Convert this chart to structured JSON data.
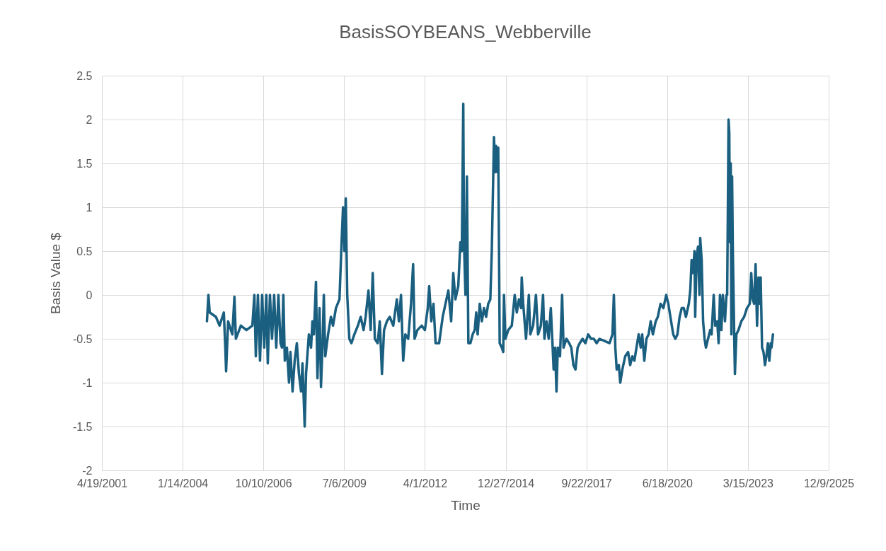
{
  "chart_data": {
    "type": "line",
    "title": "BasisSOYBEANS_Webberville",
    "xlabel": "Time",
    "ylabel": "Basis Value $",
    "xlim": [
      "2001-04-19",
      "2025-12-09"
    ],
    "xticks": [
      {
        "value": "2001-04-19",
        "label": "4/19/2001"
      },
      {
        "value": "2004-01-14",
        "label": "1/14/2004"
      },
      {
        "value": "2006-10-10",
        "label": "10/10/2006"
      },
      {
        "value": "2009-07-06",
        "label": "7/6/2009"
      },
      {
        "value": "2012-04-01",
        "label": "4/1/2012"
      },
      {
        "value": "2014-12-27",
        "label": "12/27/2014"
      },
      {
        "value": "2017-09-22",
        "label": "9/22/2017"
      },
      {
        "value": "2020-06-18",
        "label": "6/18/2020"
      },
      {
        "value": "2023-03-15",
        "label": "3/15/2023"
      },
      {
        "value": "2025-12-09",
        "label": "12/9/2025"
      }
    ],
    "ylim": [
      -2,
      2.5
    ],
    "yticks": [
      -2,
      -1.5,
      -1,
      -0.5,
      0,
      0.5,
      1,
      1.5,
      2,
      2.5
    ],
    "grid": true,
    "marker": "none",
    "line_style": "solid",
    "x": [
      "2004-11-10",
      "2004-11-28",
      "2004-12-14",
      "2005-03-01",
      "2005-04-15",
      "2005-06-07",
      "2005-06-25",
      "2005-07-05",
      "2005-07-30",
      "2005-09-20",
      "2005-10-16",
      "2005-11-03",
      "2006-01-04",
      "2006-03-14",
      "2006-05-26",
      "2006-06-20",
      "2006-07-08",
      "2006-08-03",
      "2006-08-29",
      "2006-09-24",
      "2006-10-20",
      "2006-11-15",
      "2006-12-03",
      "2006-12-30",
      "2007-01-25",
      "2007-02-20",
      "2007-03-18",
      "2007-04-14",
      "2007-05-10",
      "2007-05-28",
      "2007-06-14",
      "2007-07-02",
      "2007-07-28",
      "2007-08-23",
      "2007-09-10",
      "2007-10-06",
      "2007-11-01",
      "2007-11-28",
      "2007-12-24",
      "2008-01-19",
      "2008-02-06",
      "2008-03-04",
      "2008-03-21",
      "2008-04-25",
      "2008-05-22",
      "2008-06-08",
      "2008-06-26",
      "2008-07-22",
      "2008-08-09",
      "2008-09-04",
      "2008-09-22",
      "2008-10-10",
      "2008-10-27",
      "2008-11-14",
      "2008-12-19",
      "2009-01-23",
      "2009-02-18",
      "2009-03-26",
      "2009-05-09",
      "2009-06-04",
      "2009-06-22",
      "2009-07-09",
      "2009-07-26",
      "2009-08-13",
      "2009-09-08",
      "2009-10-04",
      "2009-11-09",
      "2009-12-23",
      "2010-01-27",
      "2010-03-03",
      "2010-03-29",
      "2010-05-03",
      "2010-05-30",
      "2010-06-25",
      "2010-07-21",
      "2010-08-25",
      "2010-09-20",
      "2010-10-17",
      "2010-11-12",
      "2010-12-17",
      "2011-01-21",
      "2011-03-06",
      "2011-04-19",
      "2011-05-15",
      "2011-06-10",
      "2011-07-07",
      "2011-08-02",
      "2011-09-07",
      "2011-10-12",
      "2011-11-07",
      "2011-11-25",
      "2011-12-30",
      "2012-02-21",
      "2012-04-01",
      "2012-05-06",
      "2012-05-24",
      "2012-06-19",
      "2012-07-16",
      "2012-08-11",
      "2012-09-24",
      "2012-11-07",
      "2012-12-12",
      "2013-01-16",
      "2013-02-20",
      "2013-03-18",
      "2013-04-14",
      "2013-05-19",
      "2013-06-14",
      "2013-07-02",
      "2013-07-20",
      "2013-07-29",
      "2013-08-16",
      "2013-09-03",
      "2013-09-21",
      "2013-10-17",
      "2013-11-13",
      "2013-12-09",
      "2013-12-27",
      "2014-01-14",
      "2014-02-09",
      "2014-03-07",
      "2014-04-03",
      "2014-04-29",
      "2014-05-25",
      "2014-06-20",
      "2014-07-08",
      "2014-07-26",
      "2014-08-04",
      "2014-08-22",
      "2014-08-31",
      "2014-09-18",
      "2014-09-26",
      "2014-10-14",
      "2014-11-09",
      "2014-11-27",
      "2014-12-06",
      "2014-12-24",
      "2015-01-28",
      "2015-03-13",
      "2015-04-18",
      "2015-05-14",
      "2015-06-09",
      "2015-07-06",
      "2015-07-14",
      "2015-08-01",
      "2015-09-05",
      "2015-10-10",
      "2015-10-28",
      "2015-12-02",
      "2016-01-06",
      "2016-02-01",
      "2016-03-07",
      "2016-04-03",
      "2016-04-20",
      "2016-05-16",
      "2016-06-12",
      "2016-07-08",
      "2016-07-26",
      "2016-08-12",
      "2016-08-30",
      "2016-09-16",
      "2016-10-03",
      "2016-10-30",
      "2016-11-25",
      "2016-12-13",
      "2017-01-17",
      "2017-02-21",
      "2017-03-19",
      "2017-04-14",
      "2017-05-10",
      "2017-06-05",
      "2017-07-01",
      "2017-08-05",
      "2017-09-09",
      "2017-10-14",
      "2017-11-18",
      "2017-12-23",
      "2018-01-27",
      "2018-03-03",
      "2018-07-05",
      "2018-08-10",
      "2018-08-28",
      "2018-09-15",
      "2018-10-02",
      "2018-10-28",
      "2018-11-15",
      "2018-12-11",
      "2019-01-15",
      "2019-02-20",
      "2019-03-18",
      "2019-04-13",
      "2019-05-09",
      "2019-06-04",
      "2019-07-01",
      "2019-07-27",
      "2019-08-14",
      "2019-09-09",
      "2019-10-05",
      "2019-11-01",
      "2019-11-27",
      "2019-12-24",
      "2020-01-28",
      "2020-02-23",
      "2020-03-28",
      "2020-05-02",
      "2020-06-06",
      "2020-07-02",
      "2020-07-28",
      "2020-09-01",
      "2020-09-27",
      "2020-10-23",
      "2020-11-19",
      "2020-12-15",
      "2021-01-10",
      "2021-02-05",
      "2021-03-13",
      "2021-03-31",
      "2021-04-17",
      "2021-05-05",
      "2021-05-22",
      "2021-05-31",
      "2021-06-18",
      "2021-07-05",
      "2021-07-23",
      "2021-08-01",
      "2021-08-19",
      "2021-09-06",
      "2021-09-24",
      "2021-10-11",
      "2021-11-06",
      "2021-12-03",
      "2021-12-20",
      "2022-01-15",
      "2022-02-02",
      "2022-02-28",
      "2022-03-17",
      "2022-04-03",
      "2022-04-21",
      "2022-05-08",
      "2022-06-04",
      "2022-06-22",
      "2022-07-01",
      "2022-07-09",
      "2022-07-18",
      "2022-07-27",
      "2022-08-05",
      "2022-08-14",
      "2022-08-22",
      "2022-08-31",
      "2022-09-09",
      "2022-09-26",
      "2022-10-05",
      "2022-10-23",
      "2022-11-18",
      "2022-12-23",
      "2023-01-27",
      "2023-03-03",
      "2023-04-07",
      "2023-04-25",
      "2023-05-13",
      "2023-05-31",
      "2023-06-18",
      "2023-07-06",
      "2023-07-24",
      "2023-08-11",
      "2023-08-20",
      "2023-09-06",
      "2023-09-24",
      "2023-10-12",
      "2023-10-30",
      "2023-11-17",
      "2023-12-05",
      "2023-12-23",
      "2024-01-01",
      "2024-01-19"
    ],
    "series": [
      {
        "color": "#1a5f80",
        "values": [
          -0.3,
          0.0,
          -0.2,
          -0.25,
          -0.35,
          -0.2,
          -0.6,
          -0.87,
          -0.3,
          -0.45,
          -0.02,
          -0.5,
          -0.35,
          -0.4,
          -0.35,
          0.0,
          -0.7,
          0.0,
          -0.75,
          0.0,
          -0.6,
          0.0,
          -0.78,
          0.0,
          -0.5,
          0.0,
          -0.6,
          0.0,
          -0.55,
          -0.6,
          0.0,
          -0.75,
          -0.6,
          -1.0,
          -0.65,
          -1.1,
          -0.75,
          -0.55,
          -0.9,
          -1.1,
          -0.78,
          -1.5,
          -0.9,
          -0.45,
          -0.6,
          -0.3,
          -0.45,
          0.15,
          -0.95,
          -0.15,
          -1.05,
          -0.6,
          0.0,
          -0.7,
          -0.45,
          -0.25,
          -0.35,
          -0.15,
          -0.05,
          0.6,
          1.0,
          0.5,
          1.1,
          0.0,
          -0.5,
          -0.55,
          -0.45,
          -0.35,
          -0.25,
          -0.4,
          -0.25,
          0.05,
          -0.4,
          0.25,
          -0.5,
          -0.55,
          -0.3,
          -0.9,
          -0.4,
          -0.3,
          -0.25,
          -0.35,
          -0.05,
          -0.3,
          0.0,
          -0.75,
          -0.45,
          -0.5,
          -0.1,
          0.35,
          -0.5,
          -0.4,
          -0.35,
          -0.4,
          -0.15,
          0.1,
          -0.3,
          -0.1,
          -0.55,
          -0.55,
          -0.25,
          -0.1,
          0.05,
          -0.3,
          0.25,
          -0.05,
          0.1,
          0.6,
          0.5,
          2.18,
          0.6,
          0.0,
          1.35,
          -0.55,
          -0.55,
          -0.45,
          -0.4,
          -0.2,
          -0.45,
          -0.1,
          -0.3,
          -0.15,
          -0.25,
          -0.1,
          -0.05,
          0.5,
          1.35,
          1.8,
          1.4,
          1.7,
          1.4,
          1.68,
          -0.55,
          -0.6,
          -0.65,
          0.0,
          -0.5,
          -0.4,
          -0.35,
          0.0,
          -0.2,
          -0.05,
          -0.15,
          0.2,
          -0.1,
          -0.5,
          0.0,
          -0.45,
          -0.35,
          0.0,
          -0.45,
          -0.35,
          0.0,
          -0.5,
          -0.3,
          -0.5,
          -0.15,
          -0.5,
          -0.85,
          -0.6,
          -1.1,
          -0.6,
          -0.7,
          0.0,
          -0.6,
          -0.5,
          -0.55,
          -0.6,
          -0.8,
          -0.85,
          -0.6,
          -0.55,
          -0.5,
          -0.55,
          -0.45,
          -0.5,
          -0.5,
          -0.55,
          -0.5,
          -0.55,
          -0.45,
          0.0,
          -0.6,
          -0.85,
          -0.8,
          -1.0,
          -0.85,
          -0.7,
          -0.65,
          -0.8,
          -0.7,
          -0.75,
          -0.6,
          -0.45,
          -0.6,
          -0.45,
          -0.75,
          -0.5,
          -0.45,
          -0.3,
          -0.45,
          -0.3,
          -0.25,
          -0.1,
          -0.15,
          0.0,
          -0.1,
          -0.25,
          -0.45,
          -0.5,
          -0.45,
          -0.25,
          -0.15,
          -0.15,
          -0.25,
          -0.1,
          0.05,
          0.4,
          0.25,
          0.5,
          -0.25,
          0.45,
          0.55,
          0.0,
          0.65,
          0.4,
          -0.3,
          -0.5,
          -0.6,
          -0.5,
          -0.4,
          -0.45,
          0.0,
          -0.35,
          -0.3,
          -0.55,
          0.0,
          -0.4,
          0.0,
          -0.3,
          0.0,
          0.0,
          0.9,
          2.0,
          1.85,
          0.6,
          1.5,
          -0.45,
          1.35,
          0.5,
          -0.45,
          -0.9,
          -0.45,
          -0.4,
          -0.3,
          -0.25,
          -0.15,
          -0.1,
          0.25,
          -0.05,
          -0.1,
          0.35,
          -0.35,
          0.2,
          -0.1,
          0.2,
          -0.6,
          -0.65,
          -0.8,
          -0.7,
          -0.55,
          -0.75,
          -0.55,
          -0.6,
          -0.45
        ]
      }
    ]
  }
}
